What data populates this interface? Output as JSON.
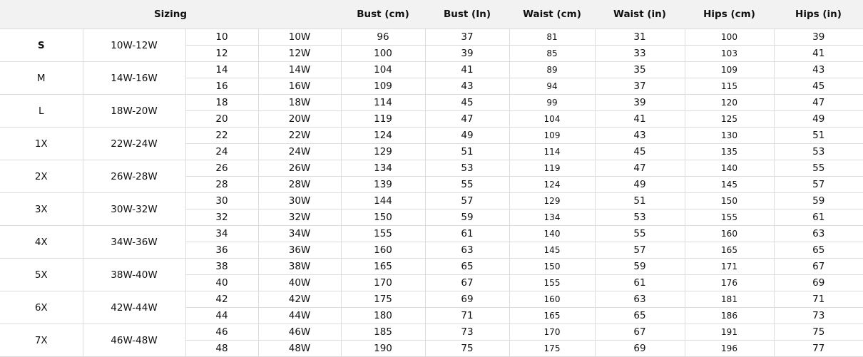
{
  "headers": [
    "Sizing",
    "Bust (cm)",
    "Bust (In)",
    "Waist (cm)",
    "Waist (in)",
    "Hips (cm)",
    "Hips (in)"
  ],
  "groups": [
    {
      "size": "S",
      "range": "10W-12W",
      "rows": [
        [
          "10",
          "10W",
          "96",
          "37",
          "81",
          "31",
          "100",
          "39"
        ],
        [
          "12",
          "12W",
          "100",
          "39",
          "85",
          "33",
          "103",
          "41"
        ]
      ]
    },
    {
      "size": "M",
      "range": "14W-16W",
      "rows": [
        [
          "14",
          "14W",
          "104",
          "41",
          "89",
          "35",
          "109",
          "43"
        ],
        [
          "16",
          "16W",
          "109",
          "43",
          "94",
          "37",
          "115",
          "45"
        ]
      ]
    },
    {
      "size": "L",
      "range": "18W-20W",
      "rows": [
        [
          "18",
          "18W",
          "114",
          "45",
          "99",
          "39",
          "120",
          "47"
        ],
        [
          "20",
          "20W",
          "119",
          "47",
          "104",
          "41",
          "125",
          "49"
        ]
      ]
    },
    {
      "size": "1X",
      "range": "22W-24W",
      "rows": [
        [
          "22",
          "22W",
          "124",
          "49",
          "109",
          "43",
          "130",
          "51"
        ],
        [
          "24",
          "24W",
          "129",
          "51",
          "114",
          "45",
          "135",
          "53"
        ]
      ]
    },
    {
      "size": "2X",
      "range": "26W-28W",
      "rows": [
        [
          "26",
          "26W",
          "134",
          "53",
          "119",
          "47",
          "140",
          "55"
        ],
        [
          "28",
          "28W",
          "139",
          "55",
          "124",
          "49",
          "145",
          "57"
        ]
      ]
    },
    {
      "size": "3X",
      "range": "30W-32W",
      "rows": [
        [
          "30",
          "30W",
          "144",
          "57",
          "129",
          "51",
          "150",
          "59"
        ],
        [
          "32",
          "32W",
          "150",
          "59",
          "134",
          "53",
          "155",
          "61"
        ]
      ]
    },
    {
      "size": "4X",
      "range": "34W-36W",
      "rows": [
        [
          "34",
          "34W",
          "155",
          "61",
          "140",
          "55",
          "160",
          "63"
        ],
        [
          "36",
          "36W",
          "160",
          "63",
          "145",
          "57",
          "165",
          "65"
        ]
      ]
    },
    {
      "size": "5X",
      "range": "38W-40W",
      "rows": [
        [
          "38",
          "38W",
          "165",
          "65",
          "150",
          "59",
          "171",
          "67"
        ],
        [
          "40",
          "40W",
          "170",
          "67",
          "155",
          "61",
          "176",
          "69"
        ]
      ]
    },
    {
      "size": "6X",
      "range": "42W-44W",
      "rows": [
        [
          "42",
          "42W",
          "175",
          "69",
          "160",
          "63",
          "181",
          "71"
        ],
        [
          "44",
          "44W",
          "180",
          "71",
          "165",
          "65",
          "186",
          "73"
        ]
      ]
    },
    {
      "size": "7X",
      "range": "46W-48W",
      "rows": [
        [
          "46",
          "46W",
          "185",
          "73",
          "170",
          "67",
          "191",
          "75"
        ],
        [
          "48",
          "48W",
          "190",
          "75",
          "175",
          "69",
          "196",
          "77"
        ]
      ]
    }
  ]
}
